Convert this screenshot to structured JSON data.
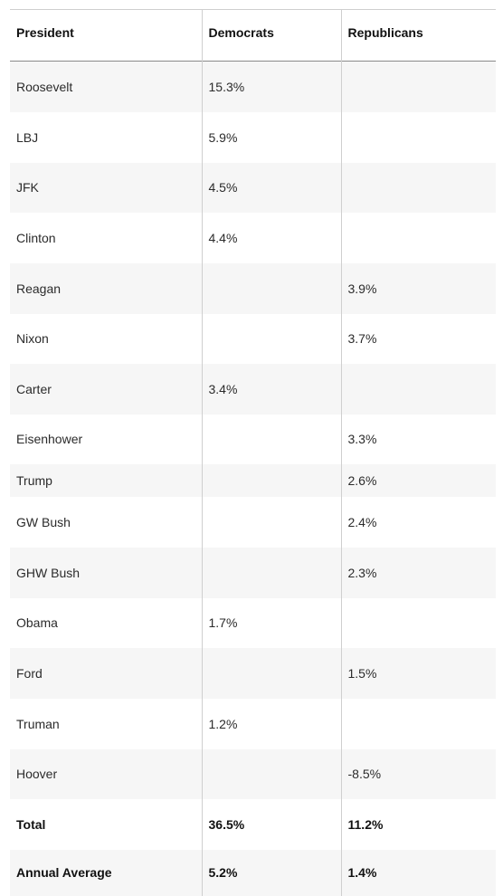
{
  "table": {
    "headers": [
      "President",
      "Democrats",
      "Republicans"
    ],
    "rows": [
      {
        "president": "Roosevelt",
        "democrats": "15.3%",
        "republicans": ""
      },
      {
        "president": "LBJ",
        "democrats": "5.9%",
        "republicans": ""
      },
      {
        "president": "JFK",
        "democrats": "4.5%",
        "republicans": ""
      },
      {
        "president": "Clinton",
        "democrats": "4.4%",
        "republicans": ""
      },
      {
        "president": "Reagan",
        "democrats": "",
        "republicans": "3.9%"
      },
      {
        "president": "Nixon",
        "democrats": "",
        "republicans": "3.7%"
      },
      {
        "president": "Carter",
        "democrats": "3.4%",
        "republicans": ""
      },
      {
        "president": "Eisenhower",
        "democrats": "",
        "republicans": "3.3%"
      },
      {
        "president": "Trump",
        "democrats": "",
        "republicans": "2.6%"
      },
      {
        "president": "GW Bush",
        "democrats": "",
        "republicans": "2.4%"
      },
      {
        "president": "GHW Bush",
        "democrats": "",
        "republicans": "2.3%"
      },
      {
        "president": "Obama",
        "democrats": "1.7%",
        "republicans": ""
      },
      {
        "president": "Ford",
        "democrats": "",
        "republicans": "1.5%"
      },
      {
        "president": "Truman",
        "democrats": "1.2%",
        "republicans": ""
      },
      {
        "president": "Hoover",
        "democrats": "",
        "republicans": "-8.5%"
      },
      {
        "president": "Total",
        "democrats": "36.5%",
        "republicans": "11.2%"
      },
      {
        "president": "Annual Average",
        "democrats": "5.2%",
        "republicans": "1.4%"
      }
    ]
  }
}
